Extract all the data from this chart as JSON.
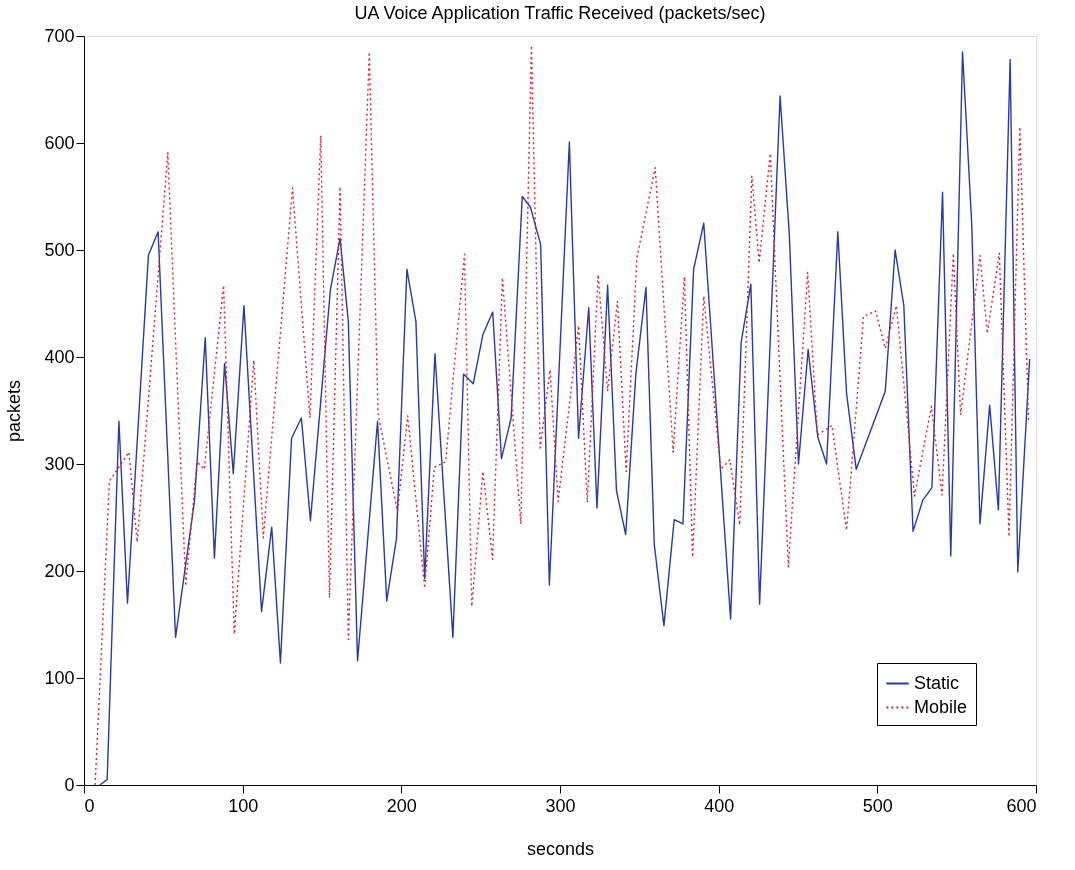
{
  "chart_data": {
    "type": "line",
    "title": "UA Voice Application Traffic Received (packets/sec)",
    "xlabel": "seconds",
    "ylabel": "packets",
    "xlim": [
      0,
      600
    ],
    "xticks": [
      0,
      100,
      200,
      300,
      400,
      500,
      600
    ],
    "ylim": [
      0,
      700
    ],
    "yticks": [
      0,
      100,
      200,
      300,
      400,
      500,
      600,
      700
    ],
    "grid": false,
    "legend": "bottom right",
    "series": [
      {
        "name": "Static",
        "color": "#2a3aa8",
        "line_style": "solid",
        "x": [
          10,
          14.6,
          22,
          27.4,
          40.6,
          46.7,
          57.7,
          69.6,
          76.4,
          82.2,
          88.6,
          94.1,
          100.8,
          111.9,
          118.3,
          123.8,
          130.8,
          137,
          142.7,
          155.3,
          161.4,
          166.6,
          172.4,
          185,
          190.8,
          196.9,
          203.5,
          209.2,
          214.7,
          221.2,
          232.5,
          239.2,
          245.3,
          251.4,
          257.6,
          263.1,
          269.2,
          276.2,
          281.4,
          287.8,
          293.3,
          305.9,
          311.7,
          318.1,
          323.3,
          330,
          335.6,
          341.4,
          347.8,
          354.2,
          359.4,
          365.5,
          372,
          377.5,
          384.2,
          390.6,
          407.5,
          414.2,
          420.3,
          425.8,
          438.7,
          444.5,
          450.3,
          456.4,
          462.5,
          468,
          475.1,
          480.6,
          486.7,
          505,
          511.2,
          516.7,
          522.5,
          528.6,
          534.4,
          541.1,
          546.3,
          553.7,
          559.5,
          564.7,
          570.8,
          576.3,
          583.7,
          588.5,
          596
        ],
        "values": [
          0,
          5,
          340,
          170,
          495,
          517,
          138,
          265,
          418,
          212,
          394,
          291,
          448,
          162,
          241,
          114,
          324,
          343,
          247,
          463,
          511,
          433,
          116,
          340,
          172,
          230,
          482,
          433,
          193,
          403,
          138,
          384,
          375,
          421,
          442,
          305,
          343,
          550,
          540,
          505,
          187,
          601,
          324,
          446,
          259,
          467,
          275,
          234,
          384,
          465,
          225,
          149,
          248,
          244,
          482,
          525,
          155,
          414,
          468,
          169,
          644,
          515,
          300,
          407,
          325,
          300,
          517,
          366,
          295,
          368,
          500,
          448,
          237,
          266,
          278,
          554,
          214,
          685,
          524,
          244,
          355,
          257,
          678,
          199,
          398
        ]
      },
      {
        "name": "Mobile",
        "color": "#e02030",
        "line_style": "dotted",
        "x": [
          7,
          16,
          28.3,
          33.5,
          52.8,
          64.1,
          71.2,
          75.8,
          88,
          94.7,
          107,
          113,
          131.4,
          142.4,
          149.2,
          154.7,
          161.4,
          166.6,
          179.8,
          185.3,
          197.5,
          204,
          214.7,
          220.8,
          227.9,
          239.8,
          244.4,
          251.4,
          257.5,
          263.7,
          275.3,
          282,
          287.5,
          293.7,
          298.8,
          311.7,
          317.2,
          324,
          330,
          336.2,
          341.7,
          348.4,
          360,
          371.3,
          378.4,
          383.6,
          390.6,
          401.3,
          407,
          413.3,
          420.9,
          425.5,
          432.5,
          443.9,
          456.1,
          462.2,
          471.4,
          480.6,
          491.3,
          498.9,
          505,
          512,
          523.4,
          534.1,
          540.8,
          547.9,
          552.5,
          564.7,
          569.3,
          576.9,
          583,
          589.8,
          595.3
        ],
        "values": [
          0,
          284,
          311,
          227,
          591,
          186,
          302,
          295,
          467,
          141,
          397,
          231,
          558,
          343,
          607,
          175,
          559,
          136,
          685,
          347,
          256,
          345,
          184,
          297,
          302,
          496,
          167,
          293,
          211,
          474,
          244,
          691,
          315,
          388,
          265,
          429,
          264,
          477,
          368,
          452,
          293,
          492,
          577,
          311,
          475,
          213,
          457,
          295,
          304,
          243,
          569,
          488,
          590,
          204,
          479,
          327,
          336,
          238,
          438,
          443,
          408,
          448,
          270,
          354,
          271,
          497,
          346,
          495,
          422,
          497,
          232,
          615,
          340
        ]
      }
    ]
  }
}
